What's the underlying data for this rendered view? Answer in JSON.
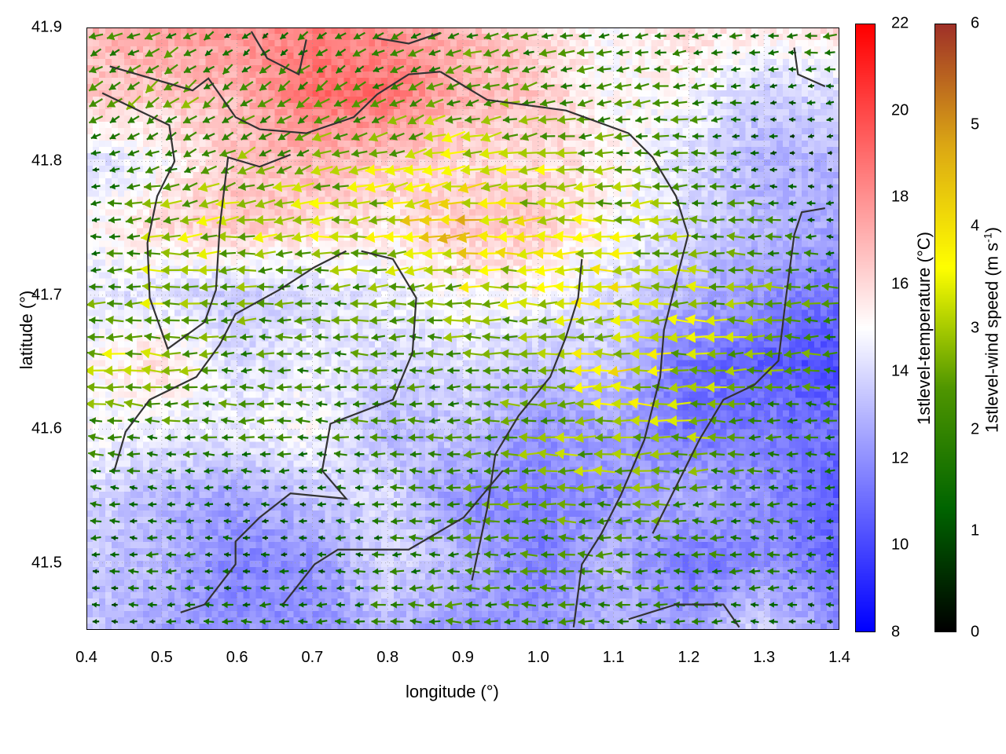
{
  "chart_data": {
    "type": "heatmap",
    "xlabel": "longitude (°)",
    "ylabel": "latitude (°)",
    "xlim": [
      0.4,
      1.4
    ],
    "ylim": [
      41.45,
      41.9
    ],
    "xticks": [
      "0.4",
      "0.5",
      "0.6",
      "0.7",
      "0.8",
      "0.9",
      "1.0",
      "1.1",
      "1.2",
      "1.3",
      "1.4"
    ],
    "yticks": [
      "41.5",
      "41.6",
      "41.7",
      "41.8",
      "41.9"
    ],
    "grid": true,
    "temperature": {
      "label": "1stlevel-temperature (°C)",
      "range": [
        8,
        22
      ],
      "ticks": [
        "8",
        "10",
        "12",
        "14",
        "16",
        "18",
        "20",
        "22"
      ],
      "colors": [
        "#0000ff",
        "#ffffff",
        "#ff0000"
      ],
      "grid_lon": [
        0.4,
        0.5,
        0.6,
        0.7,
        0.8,
        0.9,
        1.0,
        1.1,
        1.2,
        1.3,
        1.4
      ],
      "grid_lat": [
        41.9,
        41.85,
        41.8,
        41.75,
        41.7,
        41.65,
        41.6,
        41.55,
        41.5,
        41.45
      ],
      "values": [
        [
          17,
          17.5,
          18,
          18.5,
          18,
          17,
          16,
          15,
          16,
          15.5,
          16
        ],
        [
          16.5,
          16.5,
          17,
          19,
          19,
          17,
          16.5,
          15,
          15,
          13.5,
          14
        ],
        [
          14,
          15,
          16.5,
          17,
          16.5,
          16,
          16,
          15.5,
          14,
          13,
          13
        ],
        [
          15,
          16,
          16.5,
          16,
          15.5,
          16.5,
          16.5,
          15,
          14,
          13,
          12.5
        ],
        [
          14.5,
          14,
          13.5,
          14,
          14.5,
          15,
          15,
          14,
          13,
          12,
          11
        ],
        [
          15,
          16,
          14,
          14.5,
          14,
          14,
          13.5,
          13.5,
          11,
          10.5,
          10
        ],
        [
          15,
          14.5,
          14.5,
          15,
          13,
          13.5,
          12,
          12.5,
          11,
          11.5,
          11
        ],
        [
          14,
          13,
          12.5,
          13.5,
          14,
          12,
          11.5,
          12,
          13,
          12,
          10.5
        ],
        [
          13.5,
          13,
          11.5,
          12,
          14,
          13,
          11.5,
          13,
          11,
          12,
          11
        ],
        [
          13.5,
          12.5,
          12,
          12,
          13,
          12,
          12,
          13,
          12.5,
          14,
          12
        ]
      ]
    },
    "wind": {
      "label_main": "1stlevel-wind speed (m s",
      "label_sup": "-1",
      "label_end": ")",
      "range": [
        0,
        6
      ],
      "ticks": [
        "0",
        "1",
        "2",
        "3",
        "4",
        "5",
        "6"
      ],
      "colors": [
        "#000000",
        "#006400",
        "#4f9600",
        "#ffff00",
        "#dca814",
        "#a03228"
      ],
      "speed": [
        [
          2,
          2,
          1,
          1.5,
          1.5,
          2,
          2,
          2,
          1.5,
          1.5,
          2
        ],
        [
          2,
          2.5,
          2,
          2,
          2,
          2.5,
          2,
          2,
          2,
          1,
          1
        ],
        [
          1,
          2,
          2.5,
          2.5,
          3,
          3.5,
          3,
          2.5,
          2,
          1,
          0.5
        ],
        [
          1,
          3,
          3,
          3,
          3.5,
          4,
          3.5,
          3,
          2.5,
          2,
          1
        ],
        [
          2,
          3,
          2.5,
          2,
          2.5,
          3,
          3,
          3.5,
          3,
          2.5,
          2
        ],
        [
          3,
          3,
          2,
          2,
          2,
          2,
          2.5,
          3.5,
          3,
          2.5,
          2
        ],
        [
          2,
          2,
          2,
          2,
          2,
          2,
          2.5,
          3,
          3,
          2,
          1.5
        ],
        [
          1.5,
          1,
          1,
          1,
          1.5,
          2,
          2.5,
          2.5,
          2,
          1.5,
          1
        ],
        [
          1,
          1.5,
          1,
          1,
          1.5,
          2,
          2,
          2,
          2,
          1.5,
          1
        ],
        [
          1,
          1,
          1.5,
          1.5,
          2,
          2,
          2,
          1.5,
          1.5,
          1,
          1
        ]
      ],
      "direction_to_deg": [
        [
          200,
          205,
          215,
          215,
          205,
          195,
          190,
          185,
          185,
          185,
          185
        ],
        [
          215,
          220,
          220,
          215,
          205,
          200,
          195,
          190,
          185,
          185,
          185
        ],
        [
          190,
          200,
          205,
          200,
          195,
          190,
          188,
          185,
          182,
          180,
          180
        ],
        [
          180,
          185,
          185,
          185,
          185,
          185,
          183,
          182,
          180,
          180,
          180
        ],
        [
          180,
          180,
          180,
          182,
          182,
          182,
          180,
          180,
          180,
          180,
          180
        ],
        [
          175,
          178,
          180,
          180,
          180,
          180,
          180,
          180,
          180,
          180,
          180
        ],
        [
          175,
          178,
          180,
          180,
          180,
          180,
          180,
          180,
          180,
          180,
          180
        ],
        [
          175,
          178,
          180,
          180,
          180,
          180,
          180,
          180,
          180,
          180,
          180
        ],
        [
          180,
          180,
          180,
          180,
          180,
          180,
          180,
          180,
          180,
          180,
          180
        ],
        [
          180,
          180,
          180,
          180,
          180,
          180,
          180,
          180,
          180,
          180,
          180
        ]
      ]
    },
    "coastlines": [
      [
        [
          0.421,
          41.851
        ],
        [
          0.51,
          41.827
        ],
        [
          0.517,
          41.8
        ],
        [
          0.494,
          41.774
        ],
        [
          0.481,
          41.739
        ],
        [
          0.484,
          41.698
        ],
        [
          0.508,
          41.66
        ],
        [
          0.557,
          41.68
        ],
        [
          0.572,
          41.704
        ],
        [
          0.577,
          41.751
        ],
        [
          0.588,
          41.803
        ],
        [
          0.63,
          41.796
        ],
        [
          0.671,
          41.805
        ]
      ],
      [
        [
          0.431,
          41.871
        ],
        [
          0.541,
          41.853
        ],
        [
          0.562,
          41.862
        ],
        [
          0.598,
          41.833
        ],
        [
          0.63,
          41.824
        ],
        [
          0.692,
          41.821
        ],
        [
          0.755,
          41.833
        ],
        [
          0.786,
          41.85
        ],
        [
          0.828,
          41.865
        ],
        [
          0.87,
          41.867
        ]
      ],
      [
        [
          0.87,
          41.867
        ],
        [
          0.932,
          41.846
        ],
        [
          1.037,
          41.838
        ],
        [
          1.12,
          41.821
        ],
        [
          1.152,
          41.803
        ],
        [
          1.183,
          41.774
        ],
        [
          1.199,
          41.745
        ],
        [
          1.183,
          41.71
        ],
        [
          1.167,
          41.674
        ],
        [
          1.162,
          41.639
        ],
        [
          1.141,
          41.592
        ],
        [
          1.11,
          41.551
        ],
        [
          1.084,
          41.522
        ],
        [
          1.058,
          41.499
        ],
        [
          1.047,
          41.452
        ]
      ],
      [
        [
          0.765,
          41.733
        ],
        [
          0.807,
          41.727
        ],
        [
          0.838,
          41.698
        ],
        [
          0.833,
          41.657
        ],
        [
          0.807,
          41.622
        ],
        [
          0.724,
          41.604
        ],
        [
          0.713,
          41.569
        ],
        [
          0.745,
          41.548
        ],
        [
          0.671,
          41.552
        ],
        [
          0.63,
          41.534
        ],
        [
          0.598,
          41.516
        ],
        [
          0.598,
          41.499
        ],
        [
          0.557,
          41.469
        ],
        [
          0.525,
          41.463
        ]
      ],
      [
        [
          0.745,
          41.733
        ],
        [
          0.703,
          41.721
        ],
        [
          0.656,
          41.704
        ],
        [
          0.598,
          41.686
        ],
        [
          0.577,
          41.663
        ],
        [
          0.546,
          41.639
        ],
        [
          0.484,
          41.622
        ],
        [
          0.452,
          41.598
        ],
        [
          0.437,
          41.569
        ]
      ],
      [
        [
          1.058,
          41.727
        ],
        [
          1.053,
          41.698
        ],
        [
          1.037,
          41.669
        ],
        [
          1.016,
          41.639
        ],
        [
          0.974,
          41.61
        ],
        [
          0.943,
          41.581
        ],
        [
          0.932,
          41.54
        ],
        [
          0.912,
          41.487
        ]
      ],
      [
        [
          0.661,
          41.469
        ],
        [
          0.703,
          41.499
        ],
        [
          0.734,
          41.51
        ],
        [
          0.828,
          41.51
        ],
        [
          0.901,
          41.534
        ],
        [
          0.953,
          41.569
        ]
      ],
      [
        [
          1.381,
          41.765
        ],
        [
          1.35,
          41.762
        ],
        [
          1.34,
          41.745
        ],
        [
          1.329,
          41.698
        ],
        [
          1.319,
          41.651
        ],
        [
          1.287,
          41.633
        ],
        [
          1.246,
          41.622
        ],
        [
          1.214,
          41.592
        ],
        [
          1.183,
          41.557
        ],
        [
          1.152,
          41.522
        ]
      ],
      [
        [
          1.12,
          41.458
        ],
        [
          1.183,
          41.469
        ],
        [
          1.246,
          41.469
        ],
        [
          1.267,
          41.452
        ]
      ],
      [
        [
          1.34,
          41.885
        ],
        [
          1.345,
          41.865
        ],
        [
          1.381,
          41.856
        ]
      ],
      [
        [
          0.619,
          41.897
        ],
        [
          0.64,
          41.877
        ],
        [
          0.682,
          41.865
        ],
        [
          0.692,
          41.891
        ]
      ],
      [
        [
          0.786,
          41.892
        ],
        [
          0.828,
          41.888
        ],
        [
          0.87,
          41.896
        ]
      ]
    ]
  }
}
